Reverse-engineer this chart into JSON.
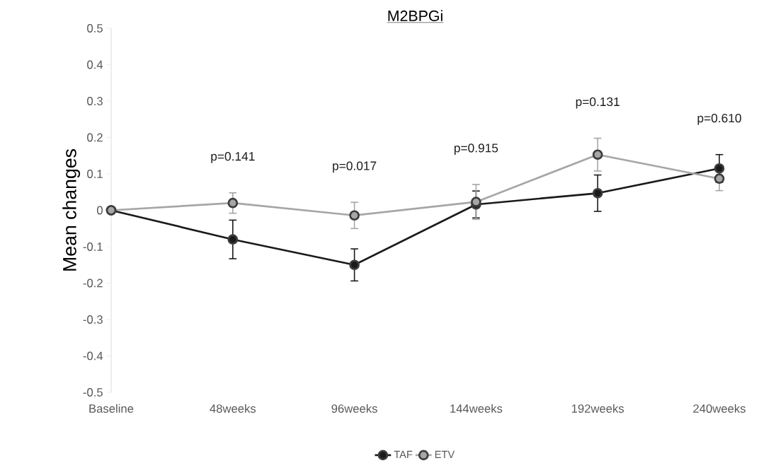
{
  "chart_data": {
    "type": "line",
    "title": "M2BPGi",
    "ylabel": "Mean changes",
    "categories": [
      "Baseline",
      "48weeks",
      "96weeks",
      "144weeks",
      "192weeks",
      "240weeks"
    ],
    "series": [
      {
        "name": "TAF",
        "color": "#1a1a1a",
        "values": [
          0,
          -0.08,
          -0.15,
          0.016,
          0.047,
          0.115
        ],
        "errors": [
          null,
          0.053,
          0.044,
          0.037,
          0.05,
          0.038
        ]
      },
      {
        "name": "ETV",
        "color": "#a6a6a6",
        "values": [
          0,
          0.02,
          -0.014,
          0.023,
          0.153,
          0.087
        ],
        "errors": [
          null,
          0.028,
          0.036,
          0.048,
          0.045,
          0.033
        ]
      }
    ],
    "ylim": [
      -0.5,
      0.5
    ],
    "yticks": [
      -0.5,
      -0.4,
      -0.3,
      -0.2,
      -0.1,
      0,
      0.1,
      0.2,
      0.3,
      0.4,
      0.5
    ],
    "annotations": [
      "p=0.141",
      "p=0.017",
      "p=0.915",
      "p=0.131",
      "p=0.610"
    ],
    "legend": "bottom",
    "marker": "circle",
    "line_style": "solid",
    "grid": false
  }
}
